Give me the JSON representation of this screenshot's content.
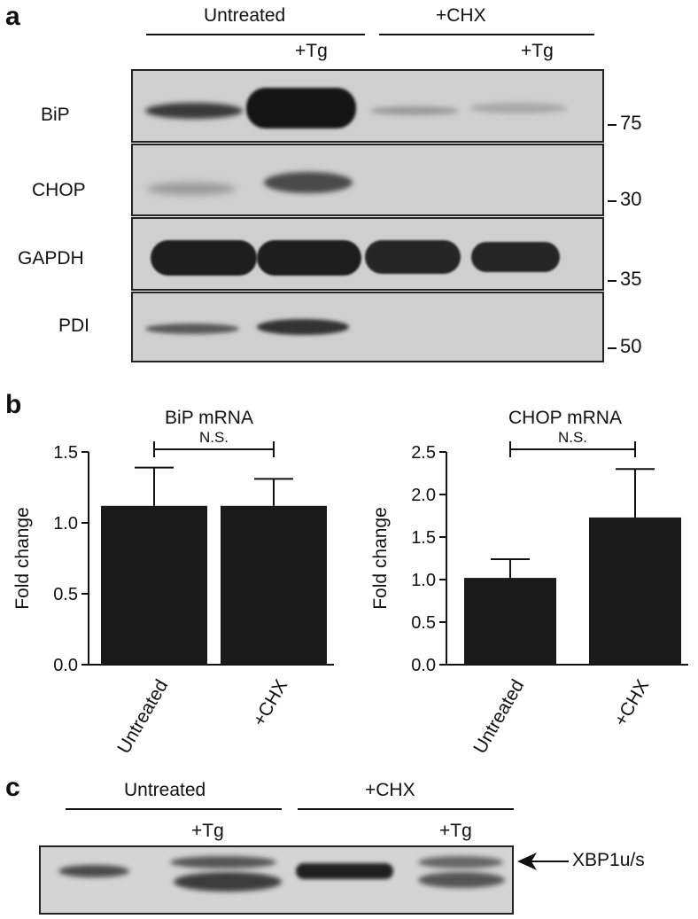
{
  "panel_a": {
    "letter": "a",
    "groups": [
      "Untreated",
      "+CHX"
    ],
    "tg_labels": [
      "+Tg",
      "+Tg"
    ],
    "rows": [
      {
        "label": "BiP",
        "mw": "75"
      },
      {
        "label": "CHOP",
        "mw": "30"
      },
      {
        "label": "GAPDH",
        "mw": "35"
      },
      {
        "label": "PDI",
        "mw": "50"
      }
    ]
  },
  "panel_b": {
    "letter": "b",
    "annotation": "N.S."
  },
  "panel_c": {
    "letter": "c",
    "groups": [
      "Untreated",
      "+CHX"
    ],
    "tg_labels": [
      "+Tg",
      "+Tg"
    ],
    "band_label": "XBP1u/s"
  },
  "colors": {
    "bar": "#1a1a1a",
    "blot_bg": "#cfcfcf",
    "band": "#1e1e1e"
  },
  "chart_data": [
    {
      "type": "bar",
      "title": "BiP mRNA",
      "ylabel": "Fold change",
      "xlabel": "",
      "categories": [
        "Untreated",
        "+CHX"
      ],
      "values": [
        1.12,
        1.12
      ],
      "errors": [
        0.27,
        0.19
      ],
      "ylim": [
        0,
        1.5
      ],
      "yticks": [
        "0.0",
        "0.5",
        "1.0",
        "1.5"
      ],
      "significance": "N.S."
    },
    {
      "type": "bar",
      "title": "CHOP mRNA",
      "ylabel": "Fold change",
      "xlabel": "",
      "categories": [
        "Untreated",
        "+CHX"
      ],
      "values": [
        1.02,
        1.73
      ],
      "errors": [
        0.22,
        0.57
      ],
      "ylim": [
        0,
        2.5
      ],
      "yticks": [
        "0.0",
        "0.5",
        "1.0",
        "1.5",
        "2.0",
        "2.5"
      ],
      "significance": "N.S."
    }
  ]
}
